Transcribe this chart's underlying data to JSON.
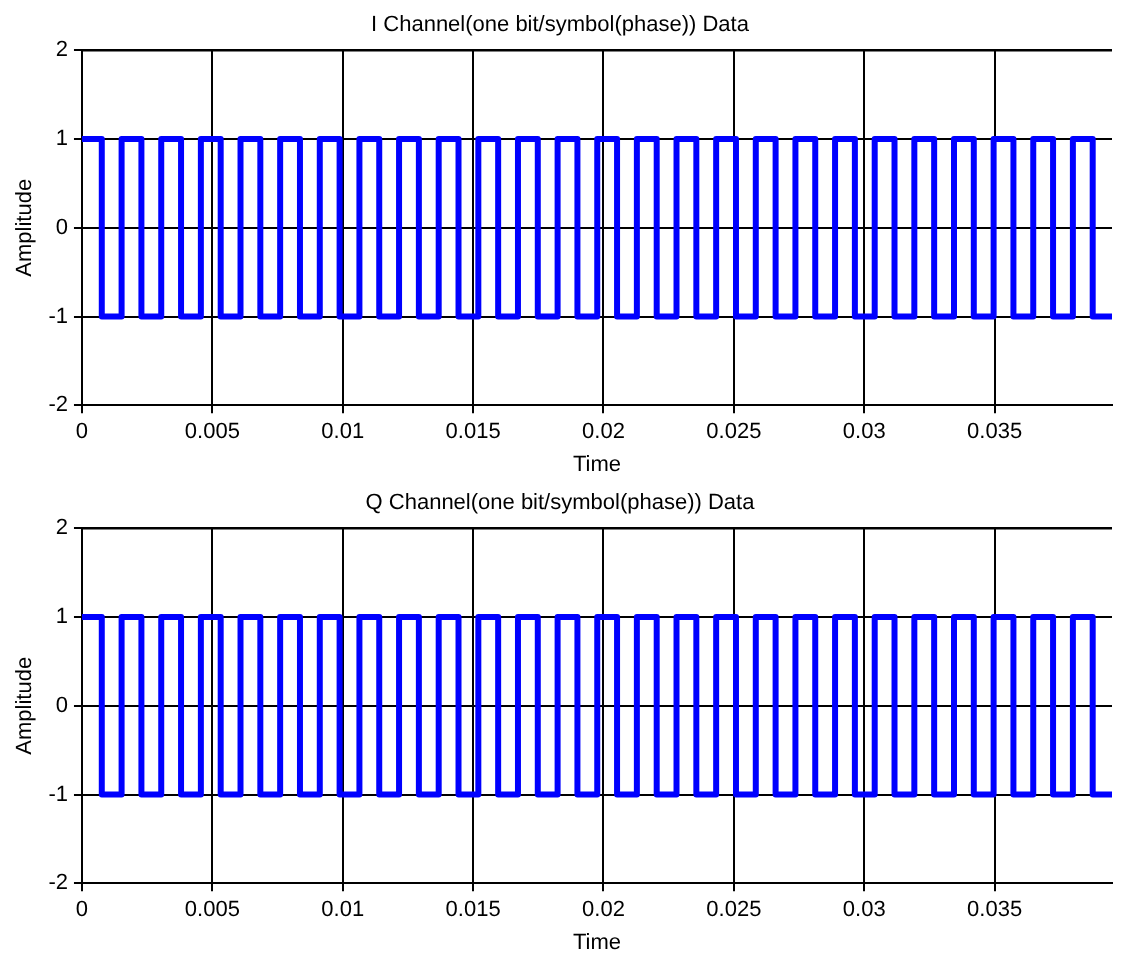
{
  "chart_data": [
    {
      "type": "step",
      "title": "I Channel(one bit/symbol(phase)) Data",
      "xlabel": "Time",
      "ylabel": "Amplitude",
      "color": "#0000ff",
      "line_style": "solid",
      "grid": true,
      "x": [
        0,
        0.00076,
        0.00152,
        0.00228,
        0.00304,
        0.0038,
        0.00456,
        0.00532,
        0.00608,
        0.00684,
        0.0076,
        0.00836,
        0.00912,
        0.00988,
        0.01064,
        0.0114,
        0.01216,
        0.01292,
        0.01368,
        0.01444,
        0.0152,
        0.01596,
        0.01672,
        0.01748,
        0.01824,
        0.019,
        0.01976,
        0.02052,
        0.02128,
        0.02204,
        0.0228,
        0.02356,
        0.02432,
        0.02508,
        0.02584,
        0.0266,
        0.02736,
        0.02812,
        0.02888,
        0.02964,
        0.0304,
        0.03116,
        0.03192,
        0.03268,
        0.03344,
        0.0342,
        0.03496,
        0.03572,
        0.03648,
        0.03724,
        0.038,
        0.03876,
        0.0395
      ],
      "values": [
        1,
        -1,
        1,
        -1,
        1,
        -1,
        1,
        -1,
        1,
        -1,
        1,
        -1,
        1,
        -1,
        1,
        -1,
        1,
        -1,
        1,
        -1,
        1,
        -1,
        1,
        -1,
        1,
        -1,
        1,
        -1,
        1,
        -1,
        1,
        -1,
        1,
        -1,
        1,
        -1,
        1,
        -1,
        1,
        -1,
        1,
        -1,
        1,
        -1,
        1,
        -1,
        1,
        -1,
        1,
        -1,
        1,
        -1,
        -1
      ],
      "xlim": [
        0,
        0.0395
      ],
      "xticks": [
        0,
        0.005,
        0.01,
        0.015,
        0.02,
        0.025,
        0.03,
        0.035
      ],
      "ylim": [
        -2,
        2
      ],
      "yticks": [
        -2,
        -1,
        0,
        1,
        2
      ]
    },
    {
      "type": "step",
      "title": "Q Channel(one bit/symbol(phase)) Data",
      "xlabel": "Time",
      "ylabel": "Amplitude",
      "color": "#0000ff",
      "line_style": "solid",
      "grid": true,
      "x": [
        0,
        0.00076,
        0.00152,
        0.00228,
        0.00304,
        0.0038,
        0.00456,
        0.00532,
        0.00608,
        0.00684,
        0.0076,
        0.00836,
        0.00912,
        0.00988,
        0.01064,
        0.0114,
        0.01216,
        0.01292,
        0.01368,
        0.01444,
        0.0152,
        0.01596,
        0.01672,
        0.01748,
        0.01824,
        0.019,
        0.01976,
        0.02052,
        0.02128,
        0.02204,
        0.0228,
        0.02356,
        0.02432,
        0.02508,
        0.02584,
        0.0266,
        0.02736,
        0.02812,
        0.02888,
        0.02964,
        0.0304,
        0.03116,
        0.03192,
        0.03268,
        0.03344,
        0.0342,
        0.03496,
        0.03572,
        0.03648,
        0.03724,
        0.038,
        0.03876,
        0.0395
      ],
      "values": [
        1,
        -1,
        1,
        -1,
        1,
        -1,
        1,
        -1,
        1,
        -1,
        1,
        -1,
        1,
        -1,
        1,
        -1,
        1,
        -1,
        1,
        -1,
        1,
        -1,
        1,
        -1,
        1,
        -1,
        1,
        -1,
        1,
        -1,
        1,
        -1,
        1,
        -1,
        1,
        -1,
        1,
        -1,
        1,
        -1,
        1,
        -1,
        1,
        -1,
        1,
        -1,
        1,
        -1,
        1,
        -1,
        1,
        -1,
        -1
      ],
      "xlim": [
        0,
        0.0395
      ],
      "xticks": [
        0,
        0.005,
        0.01,
        0.015,
        0.02,
        0.025,
        0.03,
        0.035
      ],
      "ylim": [
        -2,
        2
      ],
      "yticks": [
        -2,
        -1,
        0,
        1,
        2
      ]
    }
  ]
}
